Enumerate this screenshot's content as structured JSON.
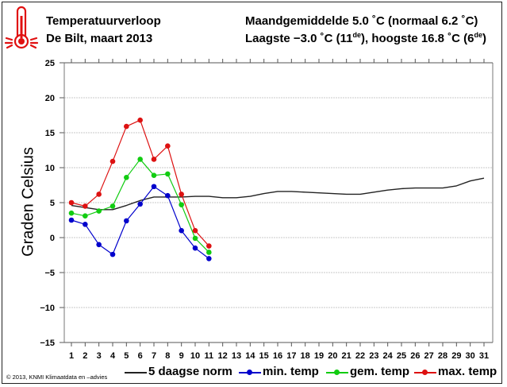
{
  "header": {
    "title": "Temperatuurverloop",
    "subtitle": "De Bilt, maart 2013",
    "mean_text": "Maandgemiddelde 5.0 ˚C (normaal 6.2 ˚C)",
    "extremes_prefix": "Laagste −3.0 ˚C (11",
    "extremes_sup1": "de",
    "extremes_mid": "), hoogste 16.8 ˚C (6",
    "extremes_sup2": "de",
    "extremes_suffix": ")",
    "icon": "thermometer-icon"
  },
  "credit": "© 2013, KNMI Klimaatdata en –advies",
  "colors": {
    "norm": "#222222",
    "min": "#0000cc",
    "gem": "#11cc11",
    "max": "#dd1111",
    "icon": "#e01010"
  },
  "chart_data": {
    "type": "line",
    "title": "Temperatuurverloop De Bilt, maart 2013",
    "xlabel": "",
    "ylabel": "Graden Celsius",
    "xlim": [
      1,
      31
    ],
    "ylim": [
      -15,
      25
    ],
    "yticks": [
      25,
      20,
      15,
      10,
      5,
      0,
      -5,
      -10,
      -15
    ],
    "ytick_labels": [
      "25",
      "20",
      "15",
      "10",
      "5",
      "0",
      "−5",
      "−10",
      "−15"
    ],
    "x": [
      1,
      2,
      3,
      4,
      5,
      6,
      7,
      8,
      9,
      10,
      11,
      12,
      13,
      14,
      15,
      16,
      17,
      18,
      19,
      20,
      21,
      22,
      23,
      24,
      25,
      26,
      27,
      28,
      29,
      30,
      31
    ],
    "grid": "horizontal",
    "legend_position": "bottom",
    "series": [
      {
        "key": "norm",
        "name": "5 daagse norm",
        "markers": false,
        "values": [
          4.6,
          4.3,
          4.0,
          4.0,
          4.6,
          5.3,
          5.8,
          5.8,
          5.8,
          5.9,
          5.9,
          5.7,
          5.7,
          5.9,
          6.3,
          6.6,
          6.6,
          6.5,
          6.4,
          6.3,
          6.2,
          6.2,
          6.5,
          6.8,
          7.0,
          7.1,
          7.1,
          7.1,
          7.4,
          8.1,
          8.5
        ]
      },
      {
        "key": "min",
        "name": "min. temp",
        "markers": true,
        "values": [
          2.5,
          1.9,
          -1.0,
          -2.4,
          2.4,
          4.8,
          7.3,
          6.0,
          1.0,
          -1.5,
          -3.0
        ]
      },
      {
        "key": "gem",
        "name": "gem. temp",
        "markers": true,
        "values": [
          3.5,
          3.1,
          3.8,
          4.5,
          8.6,
          11.2,
          8.9,
          9.1,
          4.7,
          -0.1,
          -2.1
        ]
      },
      {
        "key": "max",
        "name": "max. temp",
        "markers": true,
        "values": [
          5.0,
          4.5,
          6.2,
          10.9,
          15.9,
          16.8,
          11.2,
          13.1,
          6.2,
          1.0,
          -1.2
        ]
      }
    ]
  }
}
